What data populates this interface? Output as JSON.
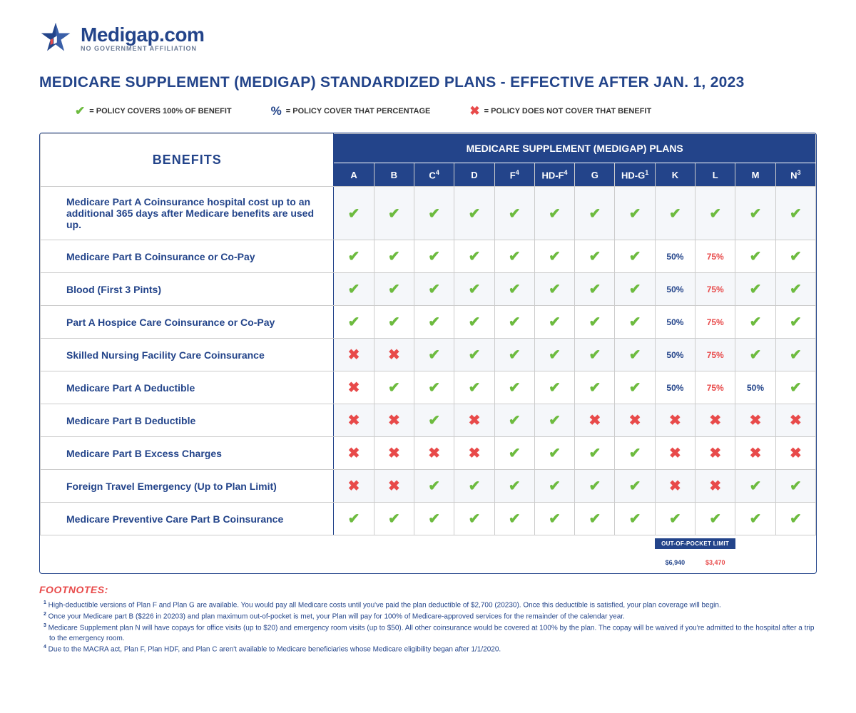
{
  "logo": {
    "main": "Medigap.com",
    "sub": "NO GOVERNMENT AFFILIATION"
  },
  "title": "MEDICARE SUPPLEMENT (MEDIGAP) STANDARDIZED PLANS - EFFECTIVE AFTER JAN. 1, 2023",
  "legend": {
    "covers": "= POLICY COVERS 100% OF BENEFIT",
    "percent": "= POLICY COVER THAT PERCENTAGE",
    "not": "= POLICY DOES NOT COVER THAT BENEFIT"
  },
  "table": {
    "benefits_header": "BENEFITS",
    "plans_header": "MEDICARE SUPPLEMENT (MEDIGAP) PLANS",
    "plans": [
      {
        "label": "A",
        "sup": ""
      },
      {
        "label": "B",
        "sup": ""
      },
      {
        "label": "C",
        "sup": "4"
      },
      {
        "label": "D",
        "sup": ""
      },
      {
        "label": "F",
        "sup": "4"
      },
      {
        "label": "HD-F",
        "sup": "4"
      },
      {
        "label": "G",
        "sup": ""
      },
      {
        "label": "HD-G",
        "sup": "1"
      },
      {
        "label": "K",
        "sup": ""
      },
      {
        "label": "L",
        "sup": ""
      },
      {
        "label": "M",
        "sup": ""
      },
      {
        "label": "N",
        "sup": "3"
      }
    ],
    "rows": [
      {
        "benefit": "Medicare Part A Coinsurance hospital cost up to an additional 365 days after Medicare benefits are used up.",
        "cells": [
          "y",
          "y",
          "y",
          "y",
          "y",
          "y",
          "y",
          "y",
          "y",
          "y",
          "y",
          "y"
        ]
      },
      {
        "benefit": "Medicare Part B Coinsurance or Co-Pay",
        "cells": [
          "y",
          "y",
          "y",
          "y",
          "y",
          "y",
          "y",
          "y",
          "50b",
          "75r",
          "y",
          "y"
        ]
      },
      {
        "benefit": "Blood (First 3 Pints)",
        "cells": [
          "y",
          "y",
          "y",
          "y",
          "y",
          "y",
          "y",
          "y",
          "50b",
          "75r",
          "y",
          "y"
        ]
      },
      {
        "benefit": "Part A Hospice Care Coinsurance or Co-Pay",
        "cells": [
          "y",
          "y",
          "y",
          "y",
          "y",
          "y",
          "y",
          "y",
          "50b",
          "75r",
          "y",
          "y"
        ]
      },
      {
        "benefit": "Skilled Nursing Facility Care Coinsurance",
        "cells": [
          "n",
          "n",
          "y",
          "y",
          "y",
          "y",
          "y",
          "y",
          "50b",
          "75r",
          "y",
          "y"
        ]
      },
      {
        "benefit": "Medicare Part A Deductible",
        "cells": [
          "n",
          "y",
          "y",
          "y",
          "y",
          "y",
          "y",
          "y",
          "50b",
          "75r",
          "50b",
          "y"
        ]
      },
      {
        "benefit": "Medicare Part B Deductible",
        "cells": [
          "n",
          "n",
          "y",
          "n",
          "y",
          "y",
          "n",
          "n",
          "n",
          "n",
          "n",
          "n"
        ]
      },
      {
        "benefit": "Medicare Part B Excess Charges",
        "cells": [
          "n",
          "n",
          "n",
          "n",
          "y",
          "y",
          "y",
          "y",
          "n",
          "n",
          "n",
          "n"
        ]
      },
      {
        "benefit": "Foreign Travel Emergency (Up to Plan Limit)",
        "cells": [
          "n",
          "n",
          "y",
          "y",
          "y",
          "y",
          "y",
          "y",
          "n",
          "n",
          "y",
          "y"
        ]
      },
      {
        "benefit": "Medicare Preventive Care Part B Coinsurance",
        "cells": [
          "y",
          "y",
          "y",
          "y",
          "y",
          "y",
          "y",
          "y",
          "y",
          "y",
          "y",
          "y"
        ]
      }
    ],
    "oop": {
      "label": "OUT-OF-POCKET LIMIT",
      "k": "$6,940",
      "l": "$3,470"
    }
  },
  "footnotes": {
    "header": "FOOTNOTES:",
    "items": [
      {
        "n": "1",
        "text": "High-deductible versions of Plan F and Plan G are available. You would pay all Medicare costs until you've paid the plan deductible of $2,700 (20230). Once this deductible is satisfied, your plan coverage will begin."
      },
      {
        "n": "2",
        "text": "Once your Medicare part B ($226 in 20203) and plan maximum out-of-pocket is met, your Plan will pay for 100% of Medicare-approved services for the remainder of the calendar year."
      },
      {
        "n": "3",
        "text": "Medicare Supplement plan N will have copays for office visits (up to $20) and emergency room visits (up to $50). All other coinsurance would be covered at 100% by the plan. The copay will be waived if you're admitted to the hospital after a trip to the emergency room."
      },
      {
        "n": "4",
        "text": "Due to the MACRA act, Plan F, Plan HDF, and Plan C aren't available to Medicare beneficiaries whose Medicare eligibility began after 1/1/2020."
      }
    ]
  },
  "colors": {
    "brand": "#23448a",
    "check": "#6dbb3f",
    "cross": "#e84a4a",
    "row_alt": "#f5f7fa",
    "border": "#cccccc"
  }
}
